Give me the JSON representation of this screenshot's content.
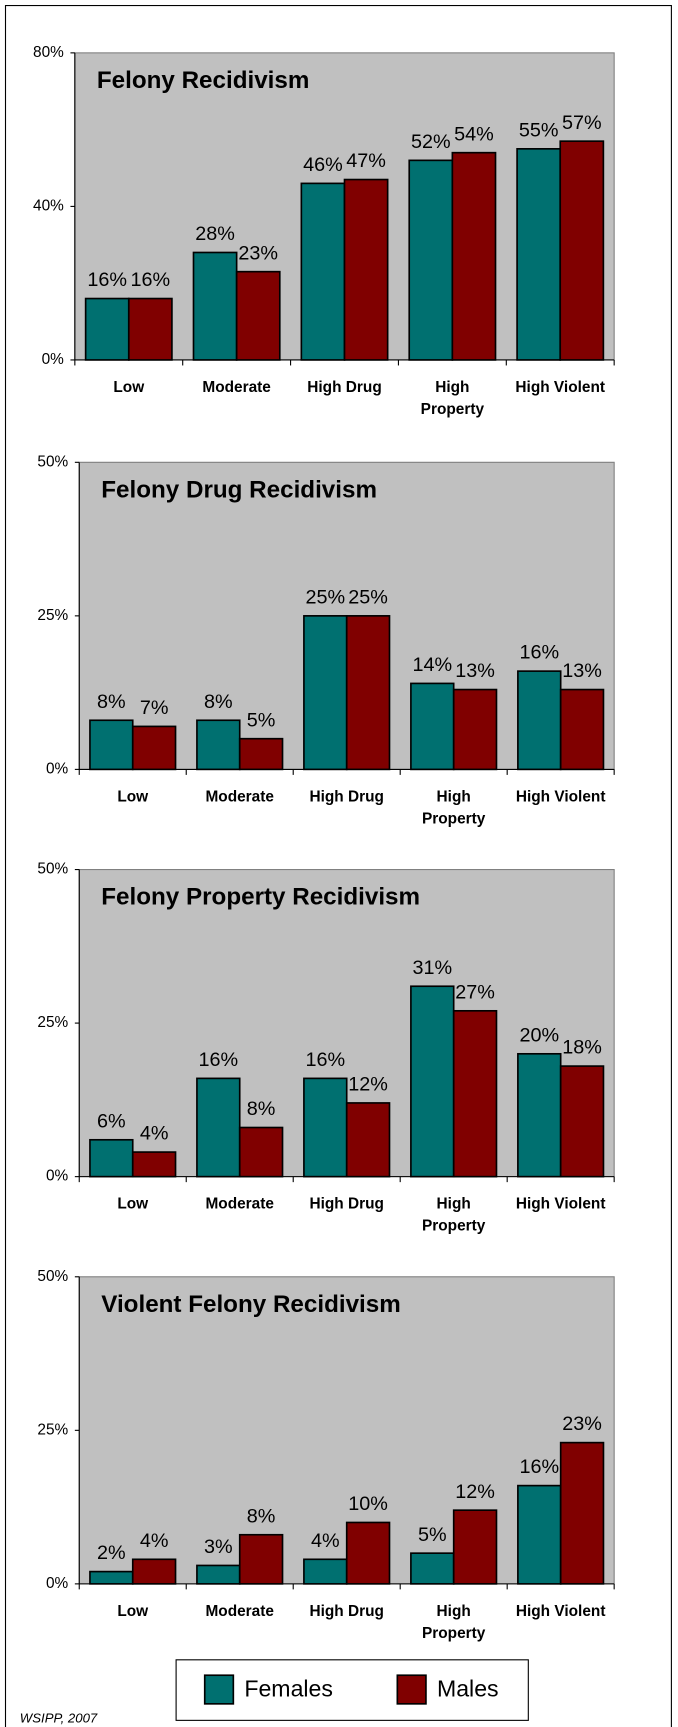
{
  "chart_data": [
    {
      "type": "bar",
      "title": "Felony Recidivism",
      "categories": [
        "Low",
        "Moderate",
        "High Drug",
        "High Property",
        "High Violent"
      ],
      "series": [
        {
          "name": "Females",
          "color": "#007070",
          "values": [
            16,
            28,
            46,
            52,
            55
          ],
          "value_labels": [
            "16%",
            "28%",
            "46%",
            "52%",
            "55%"
          ]
        },
        {
          "name": "Males",
          "color": "#800000",
          "values": [
            16,
            23,
            47,
            54,
            57
          ],
          "value_labels": [
            "16%",
            "23%",
            "47%",
            "54%",
            "57%"
          ]
        }
      ],
      "ylim": [
        0,
        80
      ],
      "yticks": [
        {
          "value": 0,
          "label": "0%"
        },
        {
          "value": 40,
          "label": "40%"
        },
        {
          "value": 80,
          "label": "80%"
        }
      ]
    },
    {
      "type": "bar",
      "title": "Felony Drug Recidivism",
      "categories": [
        "Low",
        "Moderate",
        "High Drug",
        "High Property",
        "High Violent"
      ],
      "series": [
        {
          "name": "Females",
          "color": "#007070",
          "values": [
            8,
            8,
            25,
            14,
            16
          ],
          "value_labels": [
            "8%",
            "8%",
            "25%",
            "14%",
            "16%"
          ]
        },
        {
          "name": "Males",
          "color": "#800000",
          "values": [
            7,
            5,
            25,
            13,
            13
          ],
          "value_labels": [
            "7%",
            "5%",
            "25%",
            "13%",
            "13%"
          ]
        }
      ],
      "ylim": [
        0,
        50
      ],
      "yticks": [
        {
          "value": 0,
          "label": "0%"
        },
        {
          "value": 25,
          "label": "25%"
        },
        {
          "value": 50,
          "label": "50%"
        }
      ]
    },
    {
      "type": "bar",
      "title": "Felony Property Recidivism",
      "categories": [
        "Low",
        "Moderate",
        "High Drug",
        "High Property",
        "High Violent"
      ],
      "series": [
        {
          "name": "Females",
          "color": "#007070",
          "values": [
            6,
            16,
            16,
            31,
            20
          ],
          "value_labels": [
            "6%",
            "16%",
            "16%",
            "31%",
            "20%"
          ]
        },
        {
          "name": "Males",
          "color": "#800000",
          "values": [
            4,
            8,
            12,
            27,
            18
          ],
          "value_labels": [
            "4%",
            "8%",
            "12%",
            "27%",
            "18%"
          ]
        }
      ],
      "ylim": [
        0,
        50
      ],
      "yticks": [
        {
          "value": 0,
          "label": "0%"
        },
        {
          "value": 25,
          "label": "25%"
        },
        {
          "value": 50,
          "label": "50%"
        }
      ]
    },
    {
      "type": "bar",
      "title": "Violent Felony Recidivism",
      "categories": [
        "Low",
        "Moderate",
        "High Drug",
        "High Property",
        "High Violent"
      ],
      "series": [
        {
          "name": "Females",
          "color": "#007070",
          "values": [
            2,
            3,
            4,
            5,
            16
          ],
          "value_labels": [
            "2%",
            "3%",
            "4%",
            "5%",
            "16%"
          ]
        },
        {
          "name": "Males",
          "color": "#800000",
          "values": [
            4,
            8,
            10,
            12,
            23
          ],
          "value_labels": [
            "4%",
            "8%",
            "10%",
            "12%",
            "23%"
          ]
        }
      ],
      "ylim": [
        0,
        50
      ],
      "yticks": [
        {
          "value": 0,
          "label": "0%"
        },
        {
          "value": 25,
          "label": "25%"
        },
        {
          "value": 50,
          "label": "50%"
        }
      ]
    }
  ],
  "footer": "WSIPP, 2007"
}
